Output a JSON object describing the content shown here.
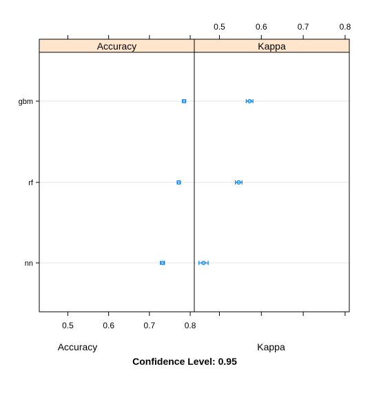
{
  "chart_data": {
    "type": "dotplot",
    "strip_color": "#ffe5cc",
    "point_color": "#0080ff",
    "categories": [
      "gbm",
      "rf",
      "nn"
    ],
    "panels": [
      {
        "name": "Accuracy",
        "xlabel": "Accuracy",
        "xlim": [
          0.43,
          0.81
        ],
        "ticks": [
          0.5,
          0.6,
          0.7,
          0.8
        ],
        "tick_side": "bottom",
        "points": [
          {
            "model": "gbm",
            "estimate": 0.785,
            "lower": 0.781,
            "upper": 0.789
          },
          {
            "model": "rf",
            "estimate": 0.772,
            "lower": 0.768,
            "upper": 0.776
          },
          {
            "model": "nn",
            "estimate": 0.732,
            "lower": 0.727,
            "upper": 0.737
          }
        ]
      },
      {
        "name": "Kappa",
        "xlabel": "Kappa",
        "xlim": [
          0.44,
          0.81
        ],
        "ticks": [
          0.5,
          0.6,
          0.7,
          0.8
        ],
        "tick_side": "top",
        "points": [
          {
            "model": "gbm",
            "estimate": 0.572,
            "lower": 0.564,
            "upper": 0.58
          },
          {
            "model": "rf",
            "estimate": 0.546,
            "lower": 0.538,
            "upper": 0.554
          },
          {
            "model": "nn",
            "estimate": 0.462,
            "lower": 0.451,
            "upper": 0.473
          }
        ]
      }
    ],
    "subtitle": "Confidence Level: 0.95"
  }
}
